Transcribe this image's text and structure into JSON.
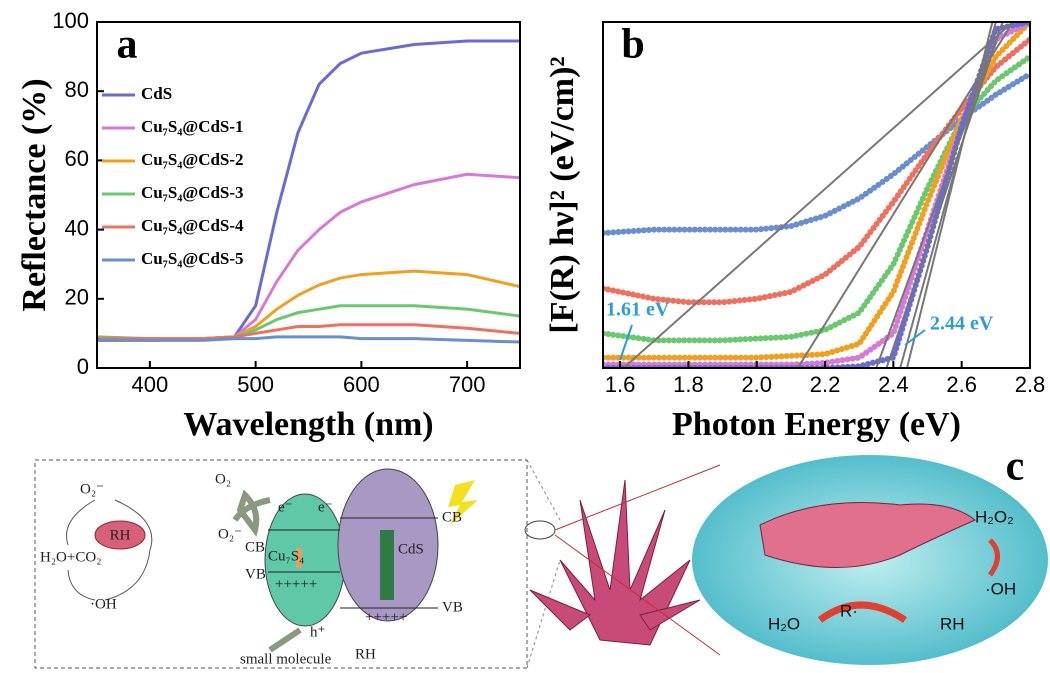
{
  "chart_data": [
    {
      "type": "line",
      "panel_label": "a",
      "x_label": "Wavelength (nm)",
      "y_label": "Reflectance (%)",
      "x": [
        350,
        400,
        450,
        480,
        500,
        520,
        540,
        560,
        580,
        600,
        650,
        700,
        750
      ],
      "series": [
        {
          "name": "CdS",
          "color": "#6b6bd6",
          "values": [
            8,
            8,
            8.5,
            9,
            18,
            45,
            68,
            82,
            88,
            91,
            93.5,
            94.5,
            94.5
          ]
        },
        {
          "name": "Cu₇S₄@CdS-1",
          "color": "#d77ad6",
          "values": [
            8,
            8,
            8.5,
            9,
            14,
            25,
            34,
            40,
            45,
            48,
            53,
            56,
            55
          ]
        },
        {
          "name": "Cu₇S₄@CdS-2",
          "color": "#f0a020",
          "values": [
            8,
            8,
            8.5,
            9,
            12,
            17,
            21,
            24,
            26,
            27,
            28,
            27,
            23.5
          ]
        },
        {
          "name": "Cu₇S₄@CdS-3",
          "color": "#6cc870",
          "values": [
            9,
            8.5,
            8.5,
            9,
            11,
            14,
            16,
            17,
            18,
            18,
            18,
            17,
            15
          ]
        },
        {
          "name": "Cu₇S₄@CdS-4",
          "color": "#f07060",
          "values": [
            8.5,
            8.5,
            8.5,
            9,
            10,
            11,
            12,
            12,
            12.5,
            12.5,
            12.5,
            11.5,
            10
          ]
        },
        {
          "name": "Cu₇S₄@CdS-5",
          "color": "#6a8fd0",
          "values": [
            8,
            8,
            8,
            8.5,
            8.5,
            9,
            9,
            9,
            9,
            8.5,
            8.5,
            8,
            7.5
          ]
        }
      ],
      "xlim": [
        350,
        750
      ],
      "xticks": [
        400,
        500,
        600,
        700
      ],
      "ylim": [
        0,
        100
      ],
      "yticks": [
        0,
        20,
        40,
        60,
        80,
        100
      ],
      "legend": "upper left",
      "grid": false
    },
    {
      "type": "scatter",
      "panel_label": "b",
      "x_label": "Photon Energy (eV)",
      "y_label": "[F(R) hν]² (eV/cm)²",
      "x": [
        1.55,
        1.7,
        1.8,
        1.9,
        2.0,
        2.1,
        2.2,
        2.3,
        2.4,
        2.5,
        2.6,
        2.7,
        2.8
      ],
      "series": [
        {
          "color": "#6a8fd0",
          "values": [
            39,
            40,
            40,
            40,
            40,
            41,
            44,
            49,
            56,
            64,
            72,
            79,
            85
          ]
        },
        {
          "color": "#f07060",
          "values": [
            23,
            20,
            19,
            19,
            20,
            22,
            27,
            35,
            48,
            62,
            75,
            87,
            95
          ]
        },
        {
          "color": "#6cc870",
          "values": [
            10,
            8,
            8,
            8,
            8.5,
            9,
            11,
            16,
            30,
            52,
            72,
            83,
            90
          ]
        },
        {
          "color": "#f0a020",
          "values": [
            3,
            3,
            3,
            3,
            3,
            3.5,
            4,
            7,
            22,
            48,
            72,
            90,
            100
          ]
        },
        {
          "color": "#d77ad6",
          "values": [
            1,
            1,
            1,
            1,
            1,
            1,
            1.5,
            3,
            10,
            40,
            70,
            95,
            100
          ]
        },
        {
          "color": "#6b6bd6",
          "values": [
            0,
            0,
            0,
            0,
            0,
            0,
            0,
            0.5,
            3,
            35,
            70,
            98,
            100
          ]
        }
      ],
      "fit_color": "#777777",
      "fit_lines": [
        {
          "x": [
            1.61,
            2.75
          ],
          "values": [
            0,
            100
          ]
        },
        {
          "x": [
            2.12,
            2.75
          ],
          "values": [
            0,
            100
          ]
        },
        {
          "x": [
            2.35,
            2.72
          ],
          "values": [
            0,
            100
          ]
        },
        {
          "x": [
            2.38,
            2.72
          ],
          "values": [
            0,
            100
          ]
        },
        {
          "x": [
            2.42,
            2.7
          ],
          "values": [
            0,
            100
          ]
        },
        {
          "x": [
            2.44,
            2.69
          ],
          "values": [
            0,
            100
          ]
        }
      ],
      "annotations": [
        "1.61 eV",
        "2.44 eV"
      ],
      "annotation_color": "#2a9fd0",
      "xlim": [
        1.55,
        2.8
      ],
      "xticks": [
        1.6,
        1.8,
        {
          "value": 2,
          "label": "2.0"
        },
        2.2,
        2.4,
        2.6,
        2.8
      ],
      "ylim": [
        0,
        100
      ],
      "yticks": [],
      "grid": false
    }
  ],
  "diagram": {
    "panel_label": "c",
    "cycle": {
      "top": "O₂⁻",
      "center": "RH",
      "left": "H₂O+CO₂",
      "bottom": "·OH"
    },
    "band": {
      "o2": "O₂",
      "o2_minus": "O₂⁻",
      "e1": "e⁻",
      "e2": "e⁻",
      "cb1": "CB",
      "vb1": "VB",
      "cb2": "CB",
      "vb2": "VB",
      "cu7s4": "Cu₇S₄",
      "cds": "CdS",
      "holes1": "+++++",
      "holes2": "+++++",
      "h_plus": "h⁺",
      "small_molecule": "small molecule",
      "rh": "RH"
    },
    "scene": {
      "h2o2": "H₂O₂",
      "oh": "·OH",
      "h2o": "H₂O",
      "r": "R·",
      "rh": "RH"
    }
  }
}
